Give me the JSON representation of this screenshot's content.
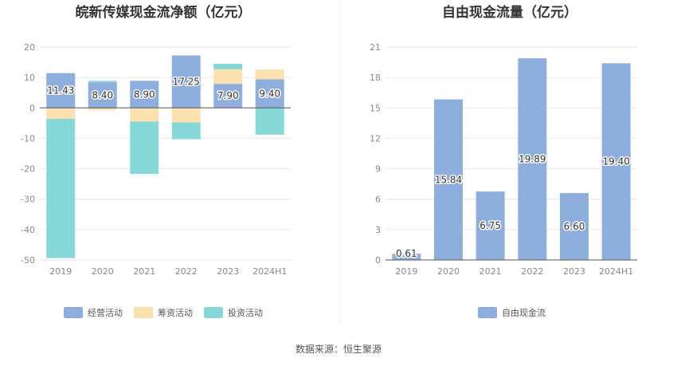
{
  "source_text": "数据来源：恒生聚源",
  "chart_data": [
    {
      "type": "bar",
      "stacked": true,
      "title": "皖新传媒现金流净额（亿元）",
      "categories": [
        "2019",
        "2020",
        "2021",
        "2022",
        "2023",
        "2024H1"
      ],
      "ylim": [
        -50,
        20
      ],
      "yticks": [
        20,
        10,
        0,
        -10,
        -20,
        -30,
        -40,
        -50
      ],
      "legend_position": "bottom",
      "series": [
        {
          "name": "经营活动",
          "color": "#8eaedd",
          "values": [
            11.43,
            8.4,
            8.9,
            17.25,
            7.9,
            9.4
          ],
          "labels": [
            "11.43",
            "8.40",
            "8.90",
            "17.25",
            "7.90",
            "9.40"
          ]
        },
        {
          "name": "筹资活动",
          "color": "#fde0b0",
          "values": [
            -3.6,
            -0.8,
            -4.5,
            -4.8,
            4.8,
            3.2
          ]
        },
        {
          "name": "投资活动",
          "color": "#86d8d8",
          "values": [
            -45.8,
            0.5,
            -17.2,
            -5.5,
            1.8,
            -8.8
          ]
        }
      ]
    },
    {
      "type": "bar",
      "title": "自由现金流量（亿元）",
      "categories": [
        "2019",
        "2020",
        "2021",
        "2022",
        "2023",
        "2024H1"
      ],
      "ylim": [
        0,
        21
      ],
      "yticks": [
        21,
        18,
        15,
        12,
        9,
        6,
        3,
        0
      ],
      "legend_position": "bottom",
      "series": [
        {
          "name": "自由现金流",
          "color": "#8eaedd",
          "values": [
            0.61,
            15.84,
            6.75,
            19.89,
            6.6,
            19.4
          ],
          "labels": [
            "0.61",
            "15.84",
            "6.75",
            "19.89",
            "6.60",
            "19.40"
          ]
        }
      ]
    }
  ]
}
